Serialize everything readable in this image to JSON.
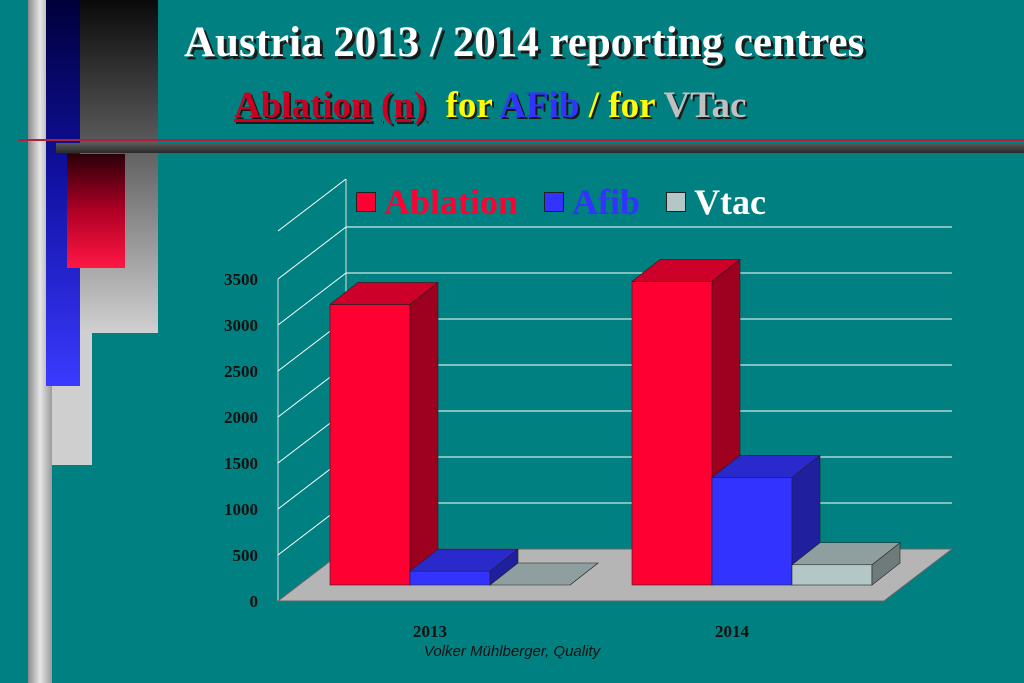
{
  "header": {
    "title": "Austria 2013 / 2014  reporting centres",
    "subtitle": {
      "part1": "Ablation",
      "part2": "(n)",
      "part3": "for",
      "part4": "AFib",
      "part5": "/ for",
      "part6": "VTac"
    }
  },
  "colors": {
    "background": "#008080",
    "ablation": "#ff0033",
    "afib": "#3333ff",
    "vtac": "#b3c7c7",
    "subtitle_red": "#cc0022",
    "subtitle_yellow": "#ffff00",
    "subtitle_blue": "#3333ff",
    "subtitle_gray": "#c0c0c0"
  },
  "chart_data": {
    "type": "bar",
    "categories": [
      "2013",
      "2014"
    ],
    "series": [
      {
        "name": "Ablation",
        "values": [
          3050,
          3300
        ],
        "color": "#ff0033"
      },
      {
        "name": "Afib",
        "values": [
          150,
          1170
        ],
        "color": "#3333ff"
      },
      {
        "name": "Vtac",
        "values": [
          0,
          220
        ],
        "color": "#b3c7c7"
      }
    ],
    "yticks": [
      "0",
      "500",
      "1000",
      "1500",
      "2000",
      "2500",
      "3000",
      "3500"
    ],
    "ylim": [
      0,
      3500
    ],
    "grid": true,
    "legend": "top",
    "three_d": true
  },
  "footer": "Volker Mühlberger, Quality"
}
